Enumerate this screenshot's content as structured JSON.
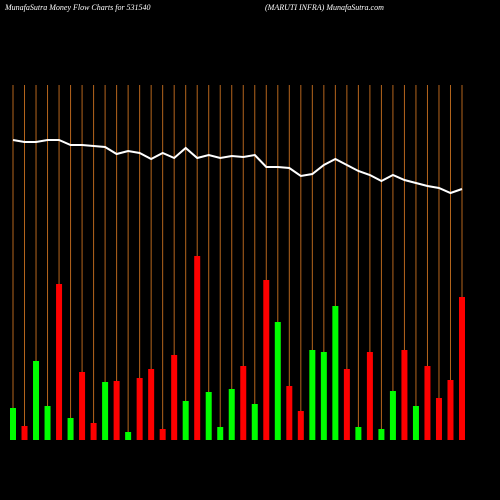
{
  "chart_data": {
    "type": "bar",
    "title": "MunafaSutra  Money Flow  Charts for 531540",
    "subtitle": "(MARUTI INFRA) MunafaSutra.com",
    "categories": [
      null,
      null,
      null,
      null,
      null,
      null,
      null,
      null,
      null,
      null,
      null,
      null,
      null,
      null,
      null,
      null,
      null,
      null,
      null,
      null,
      null,
      null,
      null,
      null,
      null,
      null,
      null,
      null,
      null,
      null,
      null,
      null,
      null,
      null,
      null,
      null,
      null,
      null,
      null,
      null
    ],
    "series": [
      {
        "type": "bar",
        "colors": [
          "#00ff00",
          "#ff0000",
          "#00ff00",
          "#00ff00",
          "#ff0000",
          "#00ff00",
          "#ff0000",
          "#ff0000",
          "#00ff00",
          "#ff0000",
          "#00ff00",
          "#ff0000",
          "#ff0000",
          "#ff0000",
          "#ff0000",
          "#00ff00",
          "#ff0000",
          "#00ff00",
          "#00ff00",
          "#00ff00",
          "#ff0000",
          "#00ff00",
          "#ff0000",
          "#00ff00",
          "#ff0000",
          "#ff0000",
          "#00ff00",
          "#00ff00",
          "#00ff00",
          "#ff0000",
          "#00ff00",
          "#ff0000",
          "#00ff00",
          "#00ff00",
          "#ff0000",
          "#00ff00",
          "#ff0000",
          "#ff0000",
          "#ff0000",
          "#ff0000"
        ],
        "values": [
          32,
          14,
          79,
          34,
          156,
          22,
          68,
          17,
          58,
          59,
          8,
          62,
          71,
          11,
          85,
          39,
          184,
          48,
          13,
          51,
          74,
          36,
          160,
          118,
          54,
          29,
          90,
          88,
          134,
          71,
          13,
          88,
          11,
          49,
          90,
          34,
          74,
          42,
          60,
          143
        ]
      },
      {
        "type": "line",
        "color": "#ffffff",
        "values": [
          300,
          298,
          298,
          300,
          300,
          295,
          295,
          294,
          293,
          286,
          289,
          287,
          281,
          287,
          282,
          292,
          282,
          285,
          282,
          284,
          283,
          285,
          273,
          273,
          272,
          264,
          266,
          275,
          281,
          275,
          269,
          265,
          259,
          265,
          260,
          257,
          254,
          252,
          247,
          251
        ]
      }
    ],
    "ylim": [
      0,
      440
    ]
  }
}
